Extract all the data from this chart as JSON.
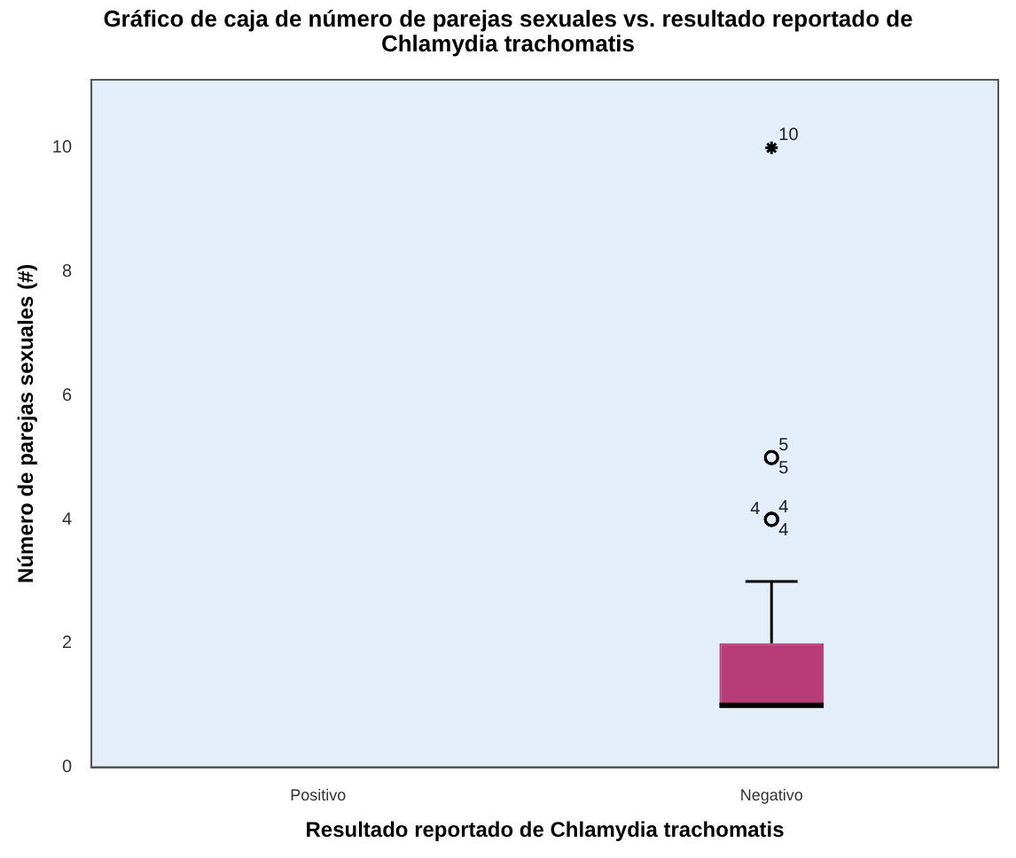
{
  "chart_data": {
    "type": "box",
    "title": "Gráfico de caja de número de parejas sexuales vs. resultado reportado de Chlamydia trachomatis",
    "xlabel": "Resultado reportado de Chlamydia trachomatis",
    "ylabel": "Número de parejas sexuales (#)",
    "categories": [
      "Positivo",
      "Negativo"
    ],
    "boxes": [
      null,
      {
        "low": 1,
        "q1": 1,
        "median": 1,
        "q3": 2,
        "high": 3,
        "outliers": [
          4,
          4,
          4,
          5,
          5,
          10
        ]
      }
    ],
    "color": "#b93c7a",
    "ylim": [
      0,
      11.1
    ],
    "yticks": [
      0,
      2,
      4,
      6,
      8,
      10
    ],
    "grid": false,
    "legend": false,
    "annotations": [
      "4",
      "4",
      "4",
      "5",
      "5",
      "10"
    ]
  }
}
